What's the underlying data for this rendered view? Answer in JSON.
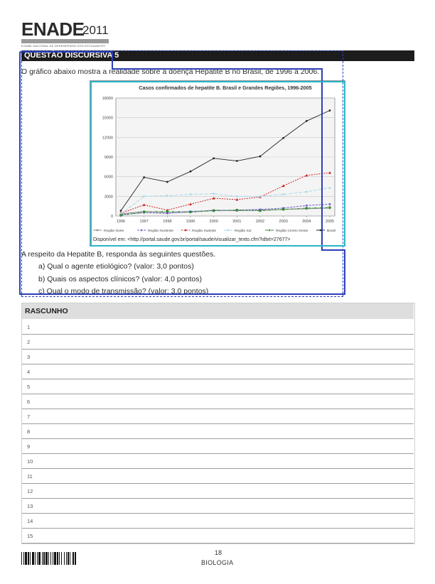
{
  "header": {
    "title": "ENADE",
    "year": "2011",
    "subtitle": "EXAME NACIONAL DE DESEMPENHO DOS ESTUDANTES"
  },
  "question": {
    "label": "QUESTÃO DISCURSIVA 5",
    "intro": "O gráfico abaixo mostra a realidade sobre a doença Hepatite B no Brasil, de 1996 a 2006.",
    "lead": "A respeito da Hepatite B, responda às seguintes questões.",
    "items": [
      "a) Qual o agente etiológico? (valor: 3,0 pontos)",
      "b) Quais os aspectos clínicos? (valor: 4,0 pontos)",
      "c) Qual o modo de transmissão? (valor: 3,0 pontos)"
    ],
    "source": "Disponível em: <http://portal.saude.gov.br/portal/saude/visualizar_texto.cfm?idtxt=27677>"
  },
  "chart_data": {
    "type": "line",
    "title": "Casos confirmados de hepatite B. Brasil e Grandes Regiões, 1996-2005",
    "x": [
      "1996",
      "1997",
      "1998",
      "1999",
      "2000",
      "2001",
      "2002",
      "2003",
      "2004",
      "2005"
    ],
    "yticks": [
      "0",
      "3000",
      "6000",
      "9000",
      "12000",
      "15000",
      "18000"
    ],
    "ylim": [
      0,
      18000
    ],
    "grid": true,
    "legend_position": "bottom",
    "series": [
      {
        "name": "Região Norte",
        "color": "#8a8a8a",
        "values": [
          300,
          700,
          500,
          600,
          900,
          800,
          900,
          1000,
          1100,
          1200
        ]
      },
      {
        "name": "Região Nordeste",
        "color": "#6a5acd",
        "values": [
          200,
          500,
          400,
          700,
          800,
          900,
          1000,
          1200,
          1600,
          1800
        ]
      },
      {
        "name": "Região Sudeste",
        "color": "#cc2222",
        "values": [
          400,
          1700,
          900,
          1800,
          2700,
          2500,
          2900,
          4600,
          6200,
          6600
        ]
      },
      {
        "name": "Região Sul",
        "color": "#a8d8ec",
        "values": [
          300,
          3000,
          3100,
          3300,
          3400,
          3000,
          3000,
          3300,
          3700,
          4300
        ]
      },
      {
        "name": "Região Centro-Oeste",
        "color": "#2e8b2e",
        "values": [
          100,
          600,
          700,
          600,
          800,
          900,
          800,
          1000,
          1200,
          1300
        ]
      },
      {
        "name": "Brasil",
        "color": "#222222",
        "values": [
          800,
          5900,
          5200,
          6800,
          8800,
          8400,
          9100,
          11900,
          14500,
          16100
        ]
      }
    ]
  },
  "rascunho": {
    "title": "RASCUNHO",
    "lines": [
      "1",
      "2",
      "3",
      "4",
      "5",
      "6",
      "7",
      "8",
      "9",
      "10",
      "11",
      "12",
      "13",
      "14",
      "15"
    ]
  },
  "footer": {
    "page": "18",
    "subject": "BIOLOGIA"
  }
}
